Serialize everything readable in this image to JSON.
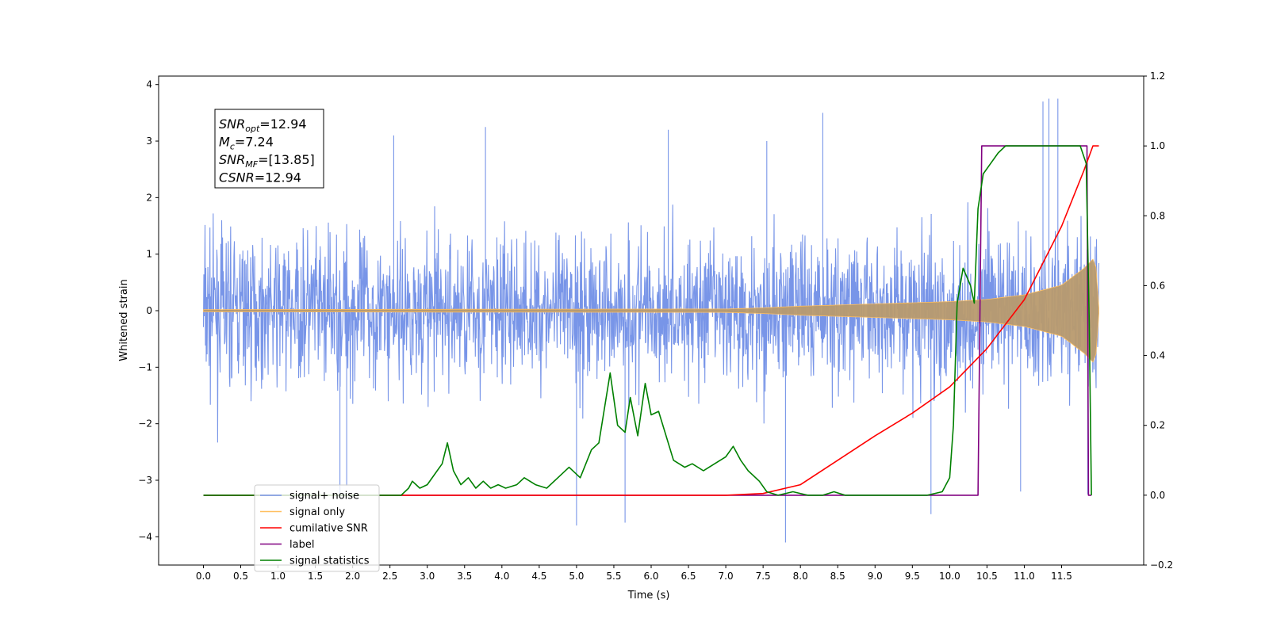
{
  "chart_data": {
    "type": "line",
    "xlabel": "Time (s)",
    "ylabel": "Whitened strain",
    "xlim": [
      -0.6,
      12.6
    ],
    "ylim": [
      -4.5,
      4.15
    ],
    "y2lim": [
      -0.2,
      1.2
    ],
    "x_ticks": [
      0.0,
      0.5,
      1.0,
      1.5,
      2.0,
      2.5,
      3.0,
      3.5,
      4.0,
      4.5,
      5.0,
      5.5,
      6.0,
      6.5,
      7.0,
      7.5,
      8.0,
      8.5,
      9.0,
      9.5,
      10.0,
      10.5,
      11.0,
      11.5
    ],
    "x_tick_labels": [
      "0.0",
      "0.5",
      "1.0",
      "1.5",
      "2.0",
      "2.5",
      "3.0",
      "3.5",
      "4.0",
      "4.5",
      "5.0",
      "5.5",
      "6.0",
      "6.5",
      "7.0",
      "7.5",
      "8.0",
      "8.5",
      "9.0",
      "9.5",
      "10.0",
      "10.5",
      "11.0",
      "11.5"
    ],
    "y_ticks": [
      -4,
      -3,
      -2,
      -1,
      0,
      1,
      2,
      3,
      4
    ],
    "y_tick_labels": [
      "−4",
      "−3",
      "−2",
      "−1",
      "0",
      "1",
      "2",
      "3",
      "4"
    ],
    "y2_ticks": [
      -0.2,
      0.0,
      0.2,
      0.4,
      0.6,
      0.8,
      1.0,
      1.2
    ],
    "y2_tick_labels": [
      "−0.2",
      "0.0",
      "0.2",
      "0.4",
      "0.6",
      "0.8",
      "1.0",
      "1.2"
    ],
    "annotation_lines": [
      {
        "main": "SNR",
        "sub": "opt",
        "rest": "=12.94"
      },
      {
        "main": "M",
        "sub": "c",
        "rest": "=7.24"
      },
      {
        "main": "SNR",
        "sub": "MF",
        "rest": "=[13.85]"
      },
      {
        "main": "CSNR",
        "sub": "",
        "rest": "=12.94"
      }
    ],
    "legend_position": "lower-left",
    "legend": [
      {
        "label": "signal+ noise",
        "color": "#7895E8"
      },
      {
        "label": "signal only",
        "color": "#FFBF60"
      },
      {
        "label": "cumilative SNR",
        "color": "#FF0000"
      },
      {
        "label": "label",
        "color": "#800080"
      },
      {
        "label": "signal statistics",
        "color": "#008000"
      }
    ],
    "series": [
      {
        "name": "signal+ noise",
        "axis": "left",
        "color": "#7895E8",
        "t_range": [
          0.0,
          12.0
        ],
        "typical_amplitude": 2.2,
        "spikes": [
          {
            "x": 1.83,
            "y": -3.3
          },
          {
            "x": 1.92,
            "y": -3.1
          },
          {
            "x": 2.55,
            "y": 3.1
          },
          {
            "x": 3.78,
            "y": 3.25
          },
          {
            "x": 5.0,
            "y": -3.8
          },
          {
            "x": 5.65,
            "y": -3.75
          },
          {
            "x": 6.23,
            "y": 3.2
          },
          {
            "x": 7.55,
            "y": 3.0
          },
          {
            "x": 7.8,
            "y": -4.1
          },
          {
            "x": 8.3,
            "y": 3.5
          },
          {
            "x": 9.75,
            "y": -3.6
          },
          {
            "x": 10.95,
            "y": -3.2
          },
          {
            "x": 11.25,
            "y": 3.7
          },
          {
            "x": 11.33,
            "y": 3.75
          },
          {
            "x": 11.45,
            "y": 3.75
          },
          {
            "x": 11.85,
            "y": -3.25
          }
        ]
      },
      {
        "name": "signal only",
        "axis": "left",
        "color": "#FFBF60",
        "envelope": {
          "t": [
            0.0,
            7.0,
            7.5,
            8.0,
            9.0,
            10.0,
            10.5,
            11.0,
            11.5,
            11.8,
            11.95,
            12.0
          ],
          "amp": [
            0.02,
            0.03,
            0.05,
            0.08,
            0.12,
            0.16,
            0.2,
            0.28,
            0.45,
            0.75,
            0.95,
            0.05
          ]
        }
      },
      {
        "name": "cumilative SNR",
        "axis": "right",
        "color": "#FF0000",
        "x": [
          0.0,
          7.0,
          7.5,
          8.0,
          8.5,
          9.0,
          9.5,
          10.0,
          10.5,
          11.0,
          11.5,
          11.8,
          11.92,
          12.0
        ],
        "y": [
          0.0,
          0.0,
          0.005,
          0.03,
          0.1,
          0.17,
          0.235,
          0.31,
          0.42,
          0.56,
          0.77,
          0.93,
          1.0,
          1.0
        ]
      },
      {
        "name": "label",
        "axis": "right",
        "color": "#800080",
        "x": [
          0.0,
          10.38,
          10.43,
          11.84,
          11.86,
          11.88,
          11.9
        ],
        "y": [
          0.0,
          0.0,
          1.0,
          1.0,
          0.0,
          0.0,
          0.0
        ]
      },
      {
        "name": "signal statistics",
        "axis": "right",
        "color": "#008000",
        "x": [
          0.0,
          2.65,
          2.75,
          2.8,
          2.9,
          3.0,
          3.1,
          3.2,
          3.27,
          3.35,
          3.45,
          3.55,
          3.65,
          3.75,
          3.85,
          3.95,
          4.05,
          4.2,
          4.3,
          4.45,
          4.6,
          4.75,
          4.9,
          5.05,
          5.2,
          5.3,
          5.45,
          5.55,
          5.65,
          5.72,
          5.82,
          5.92,
          6.0,
          6.1,
          6.2,
          6.3,
          6.45,
          6.55,
          6.7,
          6.85,
          7.0,
          7.1,
          7.2,
          7.3,
          7.45,
          7.55,
          7.7,
          7.9,
          8.1,
          8.3,
          8.45,
          8.6,
          9.0,
          9.7,
          9.9,
          10.0,
          10.05,
          10.1,
          10.18,
          10.28,
          10.33,
          10.38,
          10.45,
          10.55,
          10.65,
          10.75,
          10.85,
          11.0,
          11.2,
          11.5,
          11.75,
          11.83,
          11.87,
          11.9
        ],
        "y": [
          0.0,
          0.0,
          0.02,
          0.04,
          0.02,
          0.03,
          0.06,
          0.09,
          0.15,
          0.07,
          0.03,
          0.05,
          0.02,
          0.04,
          0.02,
          0.03,
          0.02,
          0.03,
          0.05,
          0.03,
          0.02,
          0.05,
          0.08,
          0.05,
          0.13,
          0.15,
          0.35,
          0.2,
          0.18,
          0.28,
          0.17,
          0.32,
          0.23,
          0.24,
          0.17,
          0.1,
          0.08,
          0.09,
          0.07,
          0.09,
          0.11,
          0.14,
          0.1,
          0.07,
          0.04,
          0.01,
          0.0,
          0.01,
          0.0,
          0.0,
          0.01,
          0.0,
          0.0,
          0.0,
          0.01,
          0.05,
          0.2,
          0.55,
          0.65,
          0.6,
          0.55,
          0.82,
          0.92,
          0.95,
          0.98,
          1.0,
          1.0,
          1.0,
          1.0,
          1.0,
          1.0,
          0.95,
          0.5,
          0.0
        ]
      }
    ]
  }
}
